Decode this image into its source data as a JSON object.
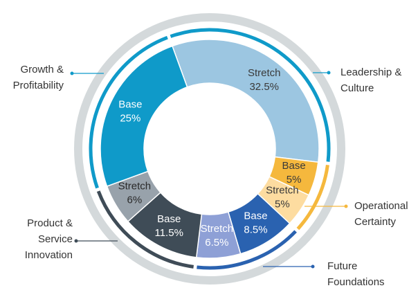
{
  "chart_data": {
    "type": "donut",
    "groups": [
      {
        "name": [
          "Leadership &",
          "Culture"
        ],
        "color": "#0f9ac9",
        "segments": [
          {
            "name": "Stretch",
            "value": 32.5,
            "value_label": "32.5%",
            "color": "#9cc6e1",
            "text_color": "#3a3a3a"
          }
        ]
      },
      {
        "name": [
          "Operational",
          "Certainty"
        ],
        "color": "#f5b83d",
        "segments": [
          {
            "name": "Base",
            "value": 5,
            "value_label": "5%",
            "color": "#f5b83d",
            "text_color": "#3a3a3a"
          },
          {
            "name": "Stretch",
            "value": 5,
            "value_label": "5%",
            "color": "#fddca0",
            "text_color": "#3a3a3a"
          }
        ]
      },
      {
        "name": [
          "Future",
          "Foundations"
        ],
        "color": "#2a62b0",
        "segments": [
          {
            "name": "Base",
            "value": 8.5,
            "value_label": "8.5%",
            "color": "#2a62b0",
            "text_color": "#ffffff"
          },
          {
            "name": "Stretch",
            "value": 6.5,
            "value_label": "6.5%",
            "color": "#8ea0d6",
            "text_color": "#ffffff"
          }
        ]
      },
      {
        "name": [
          "Product &",
          "Service",
          "Innovation"
        ],
        "color": "#3f4c57",
        "segments": [
          {
            "name": "Base",
            "value": 11.5,
            "value_label": "11.5%",
            "color": "#3f4c57",
            "text_color": "#ffffff"
          },
          {
            "name": "Stretch",
            "value": 6,
            "value_label": "6%",
            "color": "#98a2ab",
            "text_color": "#2a2a2a"
          }
        ]
      },
      {
        "name": [
          "Growth &",
          "Profitability"
        ],
        "color": "#0f9ac9",
        "segments": [
          {
            "name": "Base",
            "value": 25,
            "value_label": "25%",
            "color": "#0f9ac9",
            "text_color": "#ffffff"
          }
        ]
      }
    ]
  }
}
